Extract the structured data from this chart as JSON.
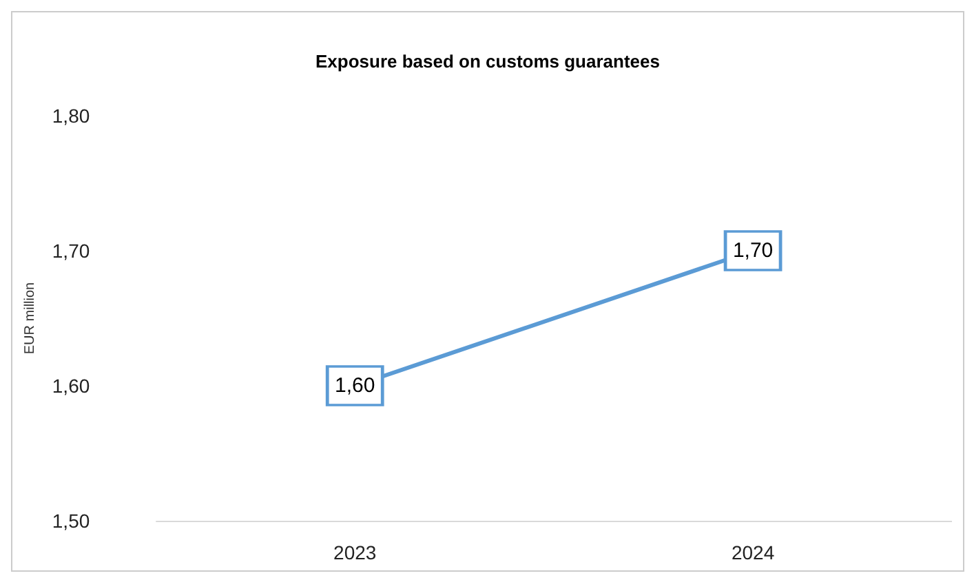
{
  "chart_data": {
    "type": "line",
    "title": "Exposure based on customs guarantees",
    "ylabel": "EUR million",
    "categories": [
      "2023",
      "2024"
    ],
    "series": [
      {
        "color": "#5b9bd5",
        "values": [
          1.6,
          1.7
        ],
        "value_labels": [
          "1,60",
          "1,70"
        ]
      }
    ],
    "ylim": [
      1.5,
      1.8
    ],
    "yticks": [
      {
        "value": 1.5,
        "label": "1,50"
      },
      {
        "value": 1.6,
        "label": "1,60"
      },
      {
        "value": 1.7,
        "label": "1,70"
      },
      {
        "value": 1.8,
        "label": "1,80"
      }
    ],
    "grid": false,
    "marker": "square",
    "line_style": "solid"
  }
}
